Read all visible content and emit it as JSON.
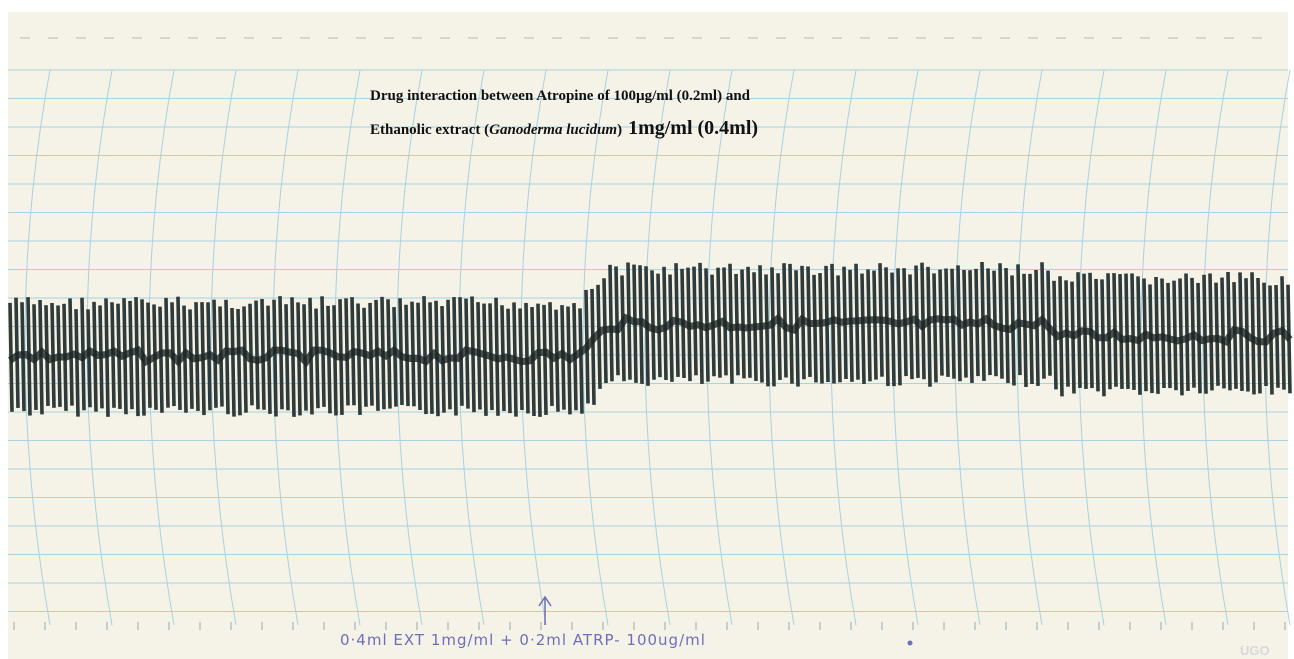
{
  "title": {
    "line1": "Drug interaction between Atropine of 100µg/ml (0.2ml) and",
    "line2_prefix": "Ethanolic extract (",
    "line2_species": "Ganoderma lucidum",
    "line2_suffix": ")",
    "line2_dose": "1mg/ml (0.4ml)"
  },
  "annotation": "0·4ml EXT 1mg/ml + 0·2ml ATRP- 100ug/ml",
  "watermark": "UGO"
}
